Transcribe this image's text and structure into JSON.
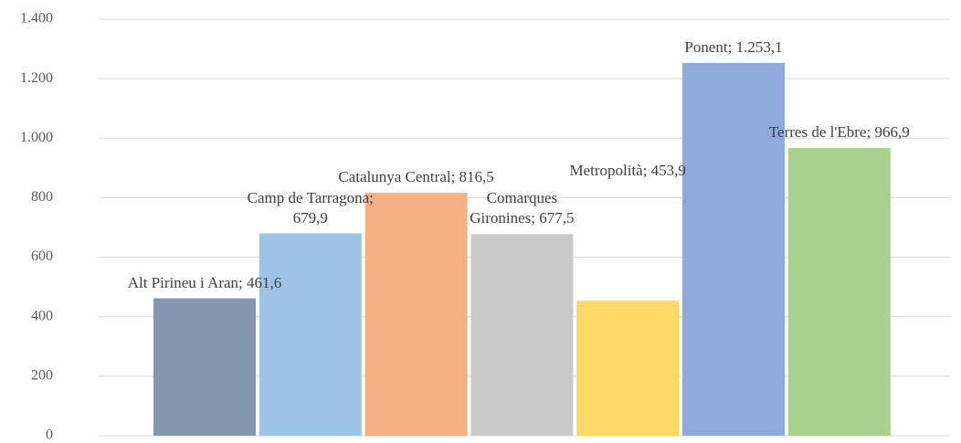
{
  "chart_data": {
    "type": "bar",
    "value_labels": [
      "Alt Pirineu i Aran; 461,6",
      "Camp de Tarragona; 679,9",
      "Catalunya Central; 816,5",
      "Comarques Gironines; 677,5",
      "Metropolità; 453,9",
      "Ponent; 1.253,1",
      "Terres de l'Ebre; 966,9"
    ],
    "values": [
      461.6,
      679.9,
      816.5,
      677.5,
      453.9,
      1253.1,
      966.9
    ],
    "colors": [
      "#8497b0",
      "#9dc3e6",
      "#f4b183",
      "#c9c9c9",
      "#ffd966",
      "#8faadc",
      "#a9d18e"
    ],
    "ylim": [
      0,
      1400
    ],
    "yticks": [
      0,
      200,
      400,
      600,
      800,
      {
        "value": 1000,
        "label": "1.000"
      },
      {
        "value": 1200,
        "label": "1.200"
      },
      {
        "value": 1400,
        "label": "1.400"
      }
    ],
    "grid": true
  }
}
